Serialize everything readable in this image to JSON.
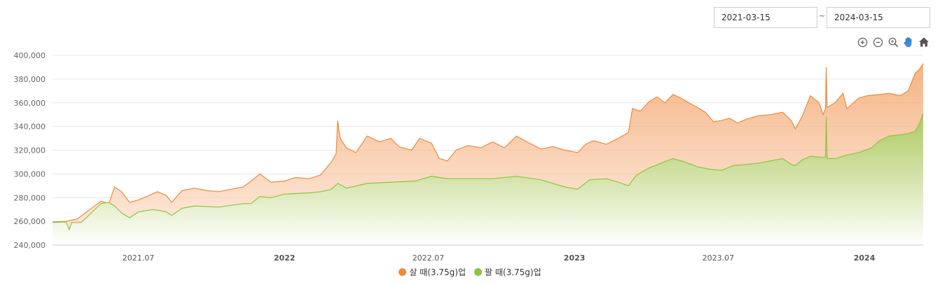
{
  "controls": {
    "date_from": "2021-03-15",
    "date_separator": "~",
    "date_to": "2024-03-15",
    "tools": [
      "zoom-in-icon",
      "zoom-out-icon",
      "magnify-icon",
      "pan-hand-icon",
      "home-icon"
    ]
  },
  "chart_data": {
    "type": "area",
    "x_ticks": [
      {
        "label": "2021.07",
        "date": "2021-07-01",
        "bold": false
      },
      {
        "label": "2022",
        "date": "2022-01-01",
        "bold": true
      },
      {
        "label": "2022.07",
        "date": "2022-07-01",
        "bold": false
      },
      {
        "label": "2023",
        "date": "2023-01-01",
        "bold": true
      },
      {
        "label": "2023.07",
        "date": "2023-07-01",
        "bold": false
      },
      {
        "label": "2024",
        "date": "2024-01-01",
        "bold": true
      }
    ],
    "y_ticks": [
      240000,
      260000,
      280000,
      300000,
      320000,
      340000,
      360000,
      380000,
      400000
    ],
    "y_tick_labels": [
      "240,000",
      "260,000",
      "280,000",
      "300,000",
      "320,000",
      "340,000",
      "360,000",
      "380,000",
      "400,000"
    ],
    "ylim": [
      240000,
      400000
    ],
    "xlim": [
      "2021-03-15",
      "2024-03-15"
    ],
    "legend_position": "bottom-center",
    "grid": true,
    "series": [
      {
        "name": "살 때(3.75g)업",
        "color": "#f08a3c",
        "points": [
          [
            "2021-03-15",
            259500
          ],
          [
            "2021-04-01",
            260000
          ],
          [
            "2021-04-15",
            262000
          ],
          [
            "2021-05-01",
            270000
          ],
          [
            "2021-05-15",
            277000
          ],
          [
            "2021-05-25",
            275000
          ],
          [
            "2021-06-01",
            289000
          ],
          [
            "2021-06-10",
            285000
          ],
          [
            "2021-06-20",
            276000
          ],
          [
            "2021-07-01",
            278000
          ],
          [
            "2021-07-15",
            282000
          ],
          [
            "2021-07-25",
            285000
          ],
          [
            "2021-08-05",
            282000
          ],
          [
            "2021-08-12",
            276000
          ],
          [
            "2021-08-25",
            286000
          ],
          [
            "2021-09-10",
            288000
          ],
          [
            "2021-09-25",
            286000
          ],
          [
            "2021-10-10",
            285000
          ],
          [
            "2021-10-25",
            287000
          ],
          [
            "2021-11-10",
            289000
          ],
          [
            "2021-11-20",
            294000
          ],
          [
            "2021-12-01",
            300000
          ],
          [
            "2021-12-15",
            293000
          ],
          [
            "2022-01-01",
            294000
          ],
          [
            "2022-01-15",
            297000
          ],
          [
            "2022-02-01",
            296000
          ],
          [
            "2022-02-15",
            299000
          ],
          [
            "2022-03-01",
            310000
          ],
          [
            "2022-03-07",
            317000
          ],
          [
            "2022-03-09",
            345000
          ],
          [
            "2022-03-12",
            330000
          ],
          [
            "2022-03-20",
            322000
          ],
          [
            "2022-04-01",
            318000
          ],
          [
            "2022-04-15",
            332000
          ],
          [
            "2022-05-01",
            327000
          ],
          [
            "2022-05-15",
            330000
          ],
          [
            "2022-05-25",
            323000
          ],
          [
            "2022-06-10",
            320000
          ],
          [
            "2022-06-20",
            330000
          ],
          [
            "2022-07-05",
            326000
          ],
          [
            "2022-07-15",
            313000
          ],
          [
            "2022-07-25",
            311000
          ],
          [
            "2022-08-05",
            320000
          ],
          [
            "2022-08-20",
            324000
          ],
          [
            "2022-09-05",
            322000
          ],
          [
            "2022-09-20",
            327000
          ],
          [
            "2022-10-05",
            322000
          ],
          [
            "2022-10-20",
            332000
          ],
          [
            "2022-11-05",
            326000
          ],
          [
            "2022-11-20",
            321000
          ],
          [
            "2022-12-05",
            323000
          ],
          [
            "2022-12-20",
            320000
          ],
          [
            "2023-01-05",
            318000
          ],
          [
            "2023-01-15",
            325000
          ],
          [
            "2023-01-25",
            328000
          ],
          [
            "2023-02-10",
            325000
          ],
          [
            "2023-02-25",
            330000
          ],
          [
            "2023-03-10",
            335000
          ],
          [
            "2023-03-15",
            355000
          ],
          [
            "2023-03-25",
            353000
          ],
          [
            "2023-04-05",
            361000
          ],
          [
            "2023-04-15",
            365000
          ],
          [
            "2023-04-25",
            360000
          ],
          [
            "2023-05-05",
            367000
          ],
          [
            "2023-05-15",
            364000
          ],
          [
            "2023-05-25",
            360000
          ],
          [
            "2023-06-05",
            356000
          ],
          [
            "2023-06-15",
            352000
          ],
          [
            "2023-06-25",
            344000
          ],
          [
            "2023-07-05",
            345000
          ],
          [
            "2023-07-15",
            347000
          ],
          [
            "2023-07-25",
            343000
          ],
          [
            "2023-08-05",
            346000
          ],
          [
            "2023-08-20",
            349000
          ],
          [
            "2023-09-05",
            350000
          ],
          [
            "2023-09-20",
            352000
          ],
          [
            "2023-10-01",
            345000
          ],
          [
            "2023-10-06",
            338000
          ],
          [
            "2023-10-15",
            349000
          ],
          [
            "2023-10-25",
            366000
          ],
          [
            "2023-11-05",
            360000
          ],
          [
            "2023-11-10",
            350000
          ],
          [
            "2023-11-13",
            355000
          ],
          [
            "2023-11-14",
            390000
          ],
          [
            "2023-11-15",
            356000
          ],
          [
            "2023-11-25",
            360000
          ],
          [
            "2023-12-05",
            368000
          ],
          [
            "2023-12-10",
            355000
          ],
          [
            "2023-12-15",
            358000
          ],
          [
            "2023-12-25",
            364000
          ],
          [
            "2024-01-05",
            366000
          ],
          [
            "2024-01-20",
            367000
          ],
          [
            "2024-02-01",
            368000
          ],
          [
            "2024-02-15",
            366000
          ],
          [
            "2024-02-25",
            370000
          ],
          [
            "2024-03-05",
            385000
          ],
          [
            "2024-03-10",
            388000
          ],
          [
            "2024-03-15",
            393000
          ]
        ]
      },
      {
        "name": "팔 때(3.75g)업",
        "color": "#8cc63e",
        "points": [
          [
            "2021-03-15",
            259000
          ],
          [
            "2021-04-01",
            259500
          ],
          [
            "2021-04-05",
            253000
          ],
          [
            "2021-04-08",
            259000
          ],
          [
            "2021-04-20",
            259000
          ],
          [
            "2021-05-01",
            266000
          ],
          [
            "2021-05-15",
            275000
          ],
          [
            "2021-05-25",
            276000
          ],
          [
            "2021-06-01",
            273000
          ],
          [
            "2021-06-10",
            267000
          ],
          [
            "2021-06-20",
            263000
          ],
          [
            "2021-07-01",
            268000
          ],
          [
            "2021-07-20",
            270000
          ],
          [
            "2021-08-05",
            268000
          ],
          [
            "2021-08-12",
            265000
          ],
          [
            "2021-08-25",
            271000
          ],
          [
            "2021-09-10",
            273000
          ],
          [
            "2021-10-10",
            272000
          ],
          [
            "2021-11-10",
            275000
          ],
          [
            "2021-11-20",
            275000
          ],
          [
            "2021-12-01",
            281000
          ],
          [
            "2021-12-15",
            280000
          ],
          [
            "2022-01-01",
            283000
          ],
          [
            "2022-02-01",
            284000
          ],
          [
            "2022-02-15",
            285000
          ],
          [
            "2022-03-01",
            287000
          ],
          [
            "2022-03-09",
            292000
          ],
          [
            "2022-03-20",
            288000
          ],
          [
            "2022-04-15",
            292000
          ],
          [
            "2022-05-15",
            293000
          ],
          [
            "2022-06-15",
            294000
          ],
          [
            "2022-07-05",
            298000
          ],
          [
            "2022-07-15",
            297000
          ],
          [
            "2022-07-25",
            296000
          ],
          [
            "2022-08-20",
            296000
          ],
          [
            "2022-09-20",
            296000
          ],
          [
            "2022-10-20",
            298000
          ],
          [
            "2022-11-20",
            295000
          ],
          [
            "2022-12-05",
            292000
          ],
          [
            "2022-12-20",
            289000
          ],
          [
            "2023-01-05",
            287000
          ],
          [
            "2023-01-20",
            295000
          ],
          [
            "2023-02-10",
            296000
          ],
          [
            "2023-02-25",
            293000
          ],
          [
            "2023-03-10",
            290000
          ],
          [
            "2023-03-20",
            299000
          ],
          [
            "2023-04-05",
            305000
          ],
          [
            "2023-04-20",
            309000
          ],
          [
            "2023-05-05",
            313000
          ],
          [
            "2023-05-20",
            310000
          ],
          [
            "2023-06-05",
            306000
          ],
          [
            "2023-06-20",
            304000
          ],
          [
            "2023-07-05",
            303000
          ],
          [
            "2023-07-20",
            307000
          ],
          [
            "2023-08-05",
            308000
          ],
          [
            "2023-08-20",
            309000
          ],
          [
            "2023-09-05",
            311000
          ],
          [
            "2023-09-20",
            313000
          ],
          [
            "2023-10-01",
            308000
          ],
          [
            "2023-10-06",
            307000
          ],
          [
            "2023-10-15",
            312000
          ],
          [
            "2023-10-25",
            315000
          ],
          [
            "2023-11-10",
            314000
          ],
          [
            "2023-11-13",
            314000
          ],
          [
            "2023-11-14",
            348000
          ],
          [
            "2023-11-15",
            313000
          ],
          [
            "2023-11-25",
            313000
          ],
          [
            "2023-12-10",
            316000
          ],
          [
            "2023-12-25",
            318000
          ],
          [
            "2024-01-10",
            322000
          ],
          [
            "2024-01-20",
            328000
          ],
          [
            "2024-02-01",
            332000
          ],
          [
            "2024-02-15",
            333000
          ],
          [
            "2024-02-25",
            334000
          ],
          [
            "2024-03-05",
            336000
          ],
          [
            "2024-03-10",
            342000
          ],
          [
            "2024-03-15",
            351000
          ]
        ]
      }
    ]
  }
}
